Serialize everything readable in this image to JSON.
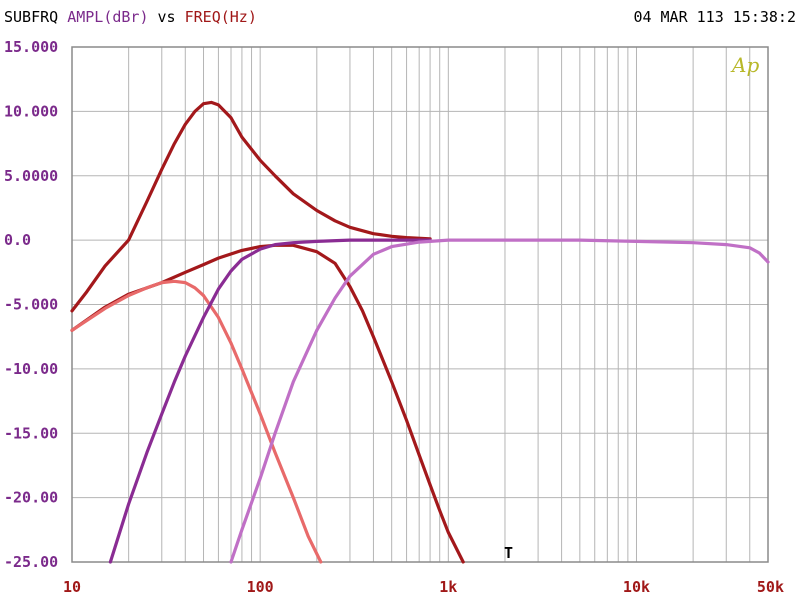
{
  "header": {
    "title": "SUBFRQ",
    "ylabel": "AMPL(dBr)",
    "vs": "vs",
    "xlabel": "FREQ(Hz)",
    "timestamp": "04 MAR 113 15:38:2"
  },
  "logo": "Ap",
  "cursor_marker": "T",
  "colors": {
    "background": "#ffffff",
    "grid": "#b5b5b5",
    "frame": "#8a8a8a",
    "ytick_text": "#7b2a8b",
    "xtick_text": "#a01818",
    "logo": "#b8b82a"
  },
  "chart_data": {
    "type": "line",
    "title": "",
    "xlabel": "FREQ(Hz)",
    "ylabel": "AMPL(dBr)",
    "xscale": "log",
    "xlim": [
      10,
      50000
    ],
    "ylim": [
      -25,
      15
    ],
    "grid": true,
    "x_ticks": [
      {
        "value": 10,
        "label": "10"
      },
      {
        "value": 100,
        "label": "100"
      },
      {
        "value": 1000,
        "label": "1k"
      },
      {
        "value": 10000,
        "label": "10k"
      },
      {
        "value": 50000,
        "label": "50k"
      }
    ],
    "y_ticks": [
      {
        "value": 15,
        "label": "15.000"
      },
      {
        "value": 10,
        "label": "10.000"
      },
      {
        "value": 5,
        "label": "5.0000"
      },
      {
        "value": 0,
        "label": "0.0"
      },
      {
        "value": -5,
        "label": "-5.000"
      },
      {
        "value": -10,
        "label": "-10.00"
      },
      {
        "value": -15,
        "label": "-15.00"
      },
      {
        "value": -20,
        "label": "-20.00"
      },
      {
        "value": -25,
        "label": "-25.00"
      }
    ],
    "series": [
      {
        "color": "#a3181b",
        "x": [
          10,
          12,
          15,
          20,
          25,
          30,
          35,
          40,
          45,
          50,
          55,
          60,
          70,
          80,
          100,
          120,
          150,
          200,
          250,
          300,
          400,
          500,
          600,
          800
        ],
        "y": [
          -5.5,
          -4,
          -2,
          0,
          3,
          5.5,
          7.5,
          9,
          10,
          10.6,
          10.7,
          10.5,
          9.5,
          8,
          6.2,
          5,
          3.6,
          2.3,
          1.5,
          1,
          0.5,
          0.3,
          0.2,
          0.1
        ]
      },
      {
        "color": "#a3181b",
        "x": [
          10,
          15,
          20,
          30,
          40,
          50,
          60,
          80,
          100,
          120,
          150,
          200,
          250,
          300,
          350,
          400,
          500,
          600,
          700,
          800,
          900,
          1000,
          1200
        ],
        "y": [
          -7,
          -5.2,
          -4.2,
          -3.3,
          -2.5,
          -1.9,
          -1.4,
          -0.8,
          -0.5,
          -0.4,
          -0.4,
          -0.9,
          -1.8,
          -3.6,
          -5.5,
          -7.5,
          -11,
          -14,
          -16.7,
          -19,
          -21,
          -22.7,
          -25
        ]
      },
      {
        "color": "#e86a6a",
        "x": [
          10,
          15,
          20,
          25,
          30,
          35,
          40,
          45,
          50,
          60,
          70,
          80,
          100,
          120,
          150,
          180,
          210
        ],
        "y": [
          -7,
          -5.3,
          -4.3,
          -3.7,
          -3.3,
          -3.2,
          -3.3,
          -3.7,
          -4.3,
          -6,
          -8,
          -10,
          -13.5,
          -16.5,
          -20,
          -23,
          -25
        ]
      },
      {
        "color": "#8a2c93",
        "x": [
          16,
          20,
          25,
          30,
          35,
          40,
          50,
          60,
          70,
          80,
          100,
          120,
          150,
          200,
          300,
          500,
          800
        ],
        "y": [
          -25,
          -20.5,
          -16.5,
          -13.5,
          -11,
          -9,
          -6,
          -3.8,
          -2.4,
          -1.5,
          -0.7,
          -0.35,
          -0.2,
          -0.1,
          0,
          0,
          0
        ]
      },
      {
        "color": "#c070c6",
        "x": [
          70,
          80,
          100,
          120,
          150,
          200,
          250,
          300,
          400,
          500,
          700,
          1000,
          2000,
          5000,
          10000,
          20000,
          30000,
          40000,
          45000,
          50000
        ],
        "y": [
          -25,
          -22.5,
          -18.5,
          -15,
          -11,
          -7,
          -4.5,
          -2.8,
          -1.1,
          -0.5,
          -0.15,
          0,
          0,
          0,
          -0.1,
          -0.2,
          -0.35,
          -0.6,
          -1,
          -1.7
        ]
      }
    ]
  }
}
